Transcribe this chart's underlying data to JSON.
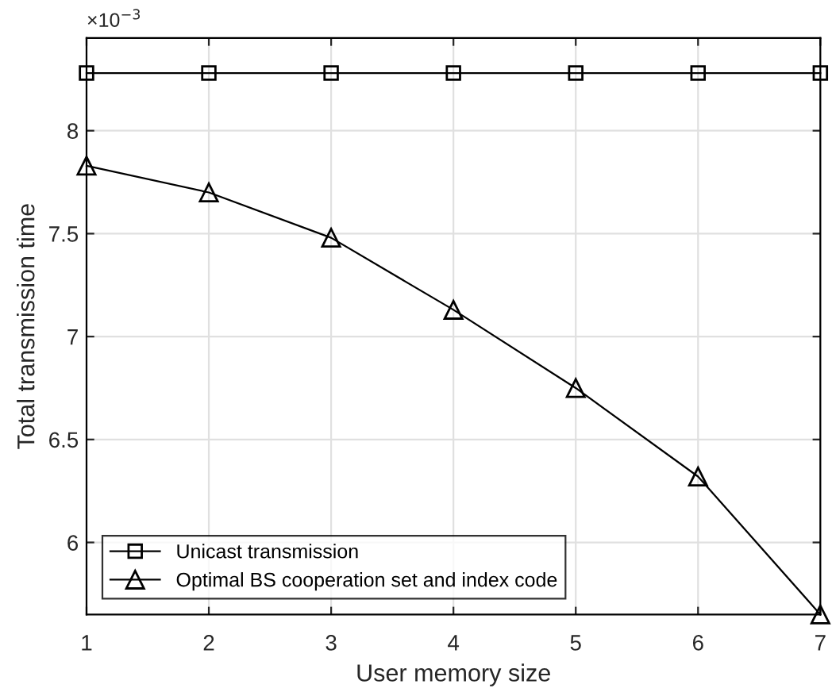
{
  "chart_data": {
    "type": "line",
    "xlabel": "User memory size",
    "ylabel": "Total transmission time",
    "annotations": [
      "×10$^{−3}$"
    ],
    "x": [
      1,
      2,
      3,
      4,
      5,
      6,
      7
    ],
    "series": [
      {
        "name": "Unicast transmission",
        "color": "#000000",
        "marker": "square",
        "values": [
          8.28,
          8.28,
          8.28,
          8.28,
          8.28,
          8.28,
          8.28
        ]
      },
      {
        "name": "Optimal BS cooperation set and index code",
        "color": "#000000",
        "marker": "triangle",
        "values": [
          7.83,
          7.7,
          7.48,
          7.13,
          6.75,
          6.32,
          5.65
        ]
      }
    ],
    "xlim": [
      1,
      7
    ],
    "xticks": [
      1,
      2,
      3,
      4,
      5,
      6,
      7
    ],
    "ylim": [
      5.65,
      8.45
    ],
    "yticks": [
      6,
      6.5,
      7,
      7.5,
      8
    ],
    "grid": true,
    "legend": "bottom left",
    "line_style": "solid"
  }
}
